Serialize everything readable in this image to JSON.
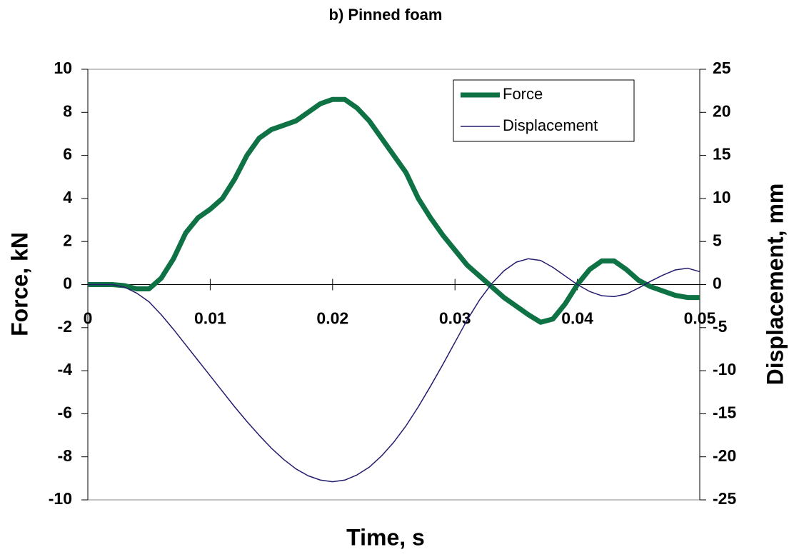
{
  "chart_data": {
    "type": "line",
    "title": "b) Pinned foam",
    "xlabel": "Time, s",
    "ylabel": "Force, kN",
    "y2label": "Displacement, mm",
    "x": [
      0,
      0.001,
      0.002,
      0.003,
      0.004,
      0.005,
      0.006,
      0.007,
      0.008,
      0.009,
      0.01,
      0.011,
      0.012,
      0.013,
      0.014,
      0.015,
      0.016,
      0.017,
      0.018,
      0.019,
      0.02,
      0.021,
      0.022,
      0.023,
      0.024,
      0.025,
      0.026,
      0.027,
      0.028,
      0.029,
      0.03,
      0.031,
      0.032,
      0.033,
      0.034,
      0.035,
      0.036,
      0.037,
      0.038,
      0.039,
      0.04,
      0.041,
      0.042,
      0.043,
      0.044,
      0.045,
      0.046,
      0.047,
      0.048,
      0.049,
      0.05
    ],
    "series": [
      {
        "name": "Force",
        "color": "#0e7245",
        "axis": "y",
        "values": [
          0,
          0,
          0,
          -0.05,
          -0.2,
          -0.2,
          0.3,
          1.2,
          2.4,
          3.1,
          3.5,
          4.0,
          4.9,
          6.0,
          6.8,
          7.2,
          7.4,
          7.6,
          8.0,
          8.4,
          8.6,
          8.6,
          8.2,
          7.6,
          6.8,
          6.0,
          5.2,
          4.0,
          3.1,
          2.3,
          1.6,
          0.9,
          0.4,
          -0.1,
          -0.6,
          -1.0,
          -1.4,
          -1.75,
          -1.6,
          -0.9,
          0.0,
          0.7,
          1.1,
          1.1,
          0.7,
          0.2,
          -0.1,
          -0.3,
          -0.5,
          -0.6,
          -0.6
        ]
      },
      {
        "name": "Displacement",
        "color": "#231c6e",
        "axis": "y2",
        "values": [
          0,
          0,
          0,
          -0.3,
          -1,
          -2,
          -3.5,
          -5.2,
          -7,
          -8.8,
          -10.6,
          -12.4,
          -14.2,
          -15.9,
          -17.5,
          -19,
          -20.3,
          -21.4,
          -22.2,
          -22.7,
          -22.9,
          -22.7,
          -22.1,
          -21.2,
          -19.9,
          -18.3,
          -16.4,
          -14.2,
          -11.8,
          -9.3,
          -6.7,
          -4.1,
          -1.8,
          0.1,
          1.6,
          2.6,
          3.0,
          2.8,
          2.0,
          1.0,
          0,
          -0.8,
          -1.3,
          -1.4,
          -1.1,
          -0.4,
          0.4,
          1.1,
          1.7,
          1.9,
          1.5
        ]
      }
    ],
    "xlim": [
      0,
      0.05
    ],
    "xticks": [
      0,
      0.01,
      0.02,
      0.03,
      0.04,
      0.05
    ],
    "ylim": [
      -10,
      10
    ],
    "yticks": [
      -10,
      -8,
      -6,
      -4,
      -2,
      0,
      2,
      4,
      6,
      8,
      10
    ],
    "y2lim": [
      -25,
      25
    ],
    "y2ticks": [
      -25,
      -20,
      -15,
      -10,
      -5,
      0,
      5,
      10,
      15,
      20,
      25
    ],
    "legend": "upper right"
  }
}
